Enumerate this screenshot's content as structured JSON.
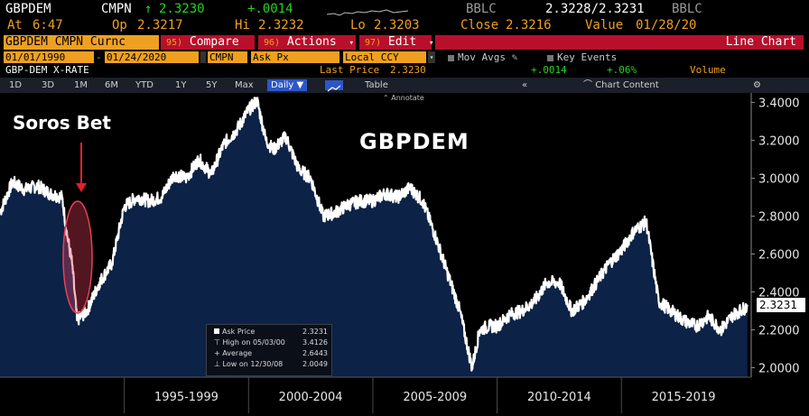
{
  "header": {
    "ticker": "GBPDEM",
    "source": "CMPN",
    "arrow": "↑",
    "last": "2.3230",
    "change": "+.0014",
    "bid_src": "BBLC",
    "bid_ask": "2.3228/2.3231",
    "bid_src2": "BBLC",
    "at_label": "At",
    "time": "6:47",
    "op_label": "Op",
    "open": "2.3217",
    "hi_label": "Hi",
    "high": "2.3232",
    "lo_label": "Lo",
    "low": "2.3203",
    "close_label": "Close",
    "close": "2.3216",
    "value_label": "Value",
    "value_date": "01/28/20"
  },
  "toolbar": {
    "security": "GBPDEM CMPN Curnc",
    "compare_num": "95)",
    "compare": "Compare",
    "actions_num": "96)",
    "actions": "Actions",
    "edit_num": "97)",
    "edit": "Edit",
    "chart_type": "Line Chart"
  },
  "fields": {
    "start_date": "01/01/1990",
    "end_date": "01/24/2020",
    "source": "CMPN",
    "price_field": "Ask Px",
    "currency": "Local CCY",
    "mov_avgs": "Mov Avgs",
    "key_events": "Key Events"
  },
  "info": {
    "name": "GBP-DEM X-RATE",
    "last_price_label": "Last Price",
    "last_price": "2.3230",
    "change": "+.0014",
    "pct": "+.06%",
    "volume": "Volume"
  },
  "periods": {
    "items": [
      "1D",
      "3D",
      "1M",
      "6M",
      "YTD",
      "1Y",
      "5Y",
      "Max"
    ],
    "selected": "Daily ▼",
    "table": "Table",
    "chart_content": "Chart Content",
    "collapse_glyph": "«",
    "annotate": "Annotate",
    "settings_glyph": "⚙"
  },
  "annotations": {
    "title": "GBPDEM",
    "soros": "Soros Bet"
  },
  "legend": {
    "ask_label": "Ask Price",
    "ask_val": "2.3231",
    "high_label": "High on 05/03/00",
    "high_val": "3.4126",
    "avg_label": "Average",
    "avg_val": "2.6443",
    "low_label": "Low on 12/30/08",
    "low_val": "2.0049"
  },
  "price_tag": "2.3231",
  "colors": {
    "bloomberg_orange": "#f0a020",
    "line": "#ffffff",
    "fill": "#0c2246",
    "menu_red": "#b8102a",
    "highlight": "#e8405a"
  },
  "chart_data": {
    "type": "area",
    "title": "GBPDEM",
    "xlabel": "",
    "ylabel": "",
    "ylim": [
      1.95,
      3.45
    ],
    "y_ticks": [
      "3.4000",
      "3.2000",
      "3.0000",
      "2.8000",
      "2.6000",
      "2.4000",
      "2.2000",
      "2.0000"
    ],
    "x_periods": [
      "1995-1999",
      "2000-2004",
      "2005-2009",
      "2010-2014",
      "2015-2019"
    ],
    "series": [
      {
        "x": [
          1990.0,
          1990.5,
          1991.0,
          1991.5,
          1992.0,
          1992.5,
          1992.7,
          1992.9,
          1993.1,
          1993.5,
          1994.0,
          1994.5,
          1995.0,
          1995.5,
          1996.0,
          1996.5,
          1997.0,
          1997.5,
          1998.0,
          1998.5,
          1999.0,
          1999.5,
          2000.0,
          2000.34,
          2000.7,
          2001.0,
          2001.5,
          2002.0,
          2002.5,
          2003.0,
          2003.5,
          2004.0,
          2004.5,
          2005.0,
          2005.5,
          2006.0,
          2006.5,
          2007.0,
          2007.5,
          2008.0,
          2008.5,
          2008.99,
          2009.3,
          2009.7,
          2010.0,
          2010.5,
          2011.0,
          2011.5,
          2012.0,
          2012.5,
          2013.0,
          2013.5,
          2014.0,
          2014.5,
          2015.0,
          2015.5,
          2016.0,
          2016.5,
          2017.0,
          2017.5,
          2018.0,
          2018.5,
          2019.0,
          2019.5,
          2020.07
        ],
        "y": [
          2.82,
          2.98,
          2.94,
          2.96,
          2.92,
          2.9,
          2.7,
          2.55,
          2.25,
          2.3,
          2.45,
          2.55,
          2.85,
          2.9,
          2.88,
          2.9,
          3.02,
          3.0,
          3.1,
          3.02,
          3.18,
          3.25,
          3.36,
          3.41,
          3.2,
          3.15,
          3.22,
          3.05,
          3.0,
          2.8,
          2.82,
          2.86,
          2.88,
          2.88,
          2.92,
          2.9,
          2.95,
          2.88,
          2.7,
          2.5,
          2.3,
          2.0,
          2.2,
          2.22,
          2.22,
          2.28,
          2.3,
          2.35,
          2.45,
          2.45,
          2.3,
          2.35,
          2.45,
          2.55,
          2.62,
          2.72,
          2.77,
          2.35,
          2.3,
          2.25,
          2.22,
          2.27,
          2.2,
          2.28,
          2.3231
        ]
      }
    ]
  }
}
